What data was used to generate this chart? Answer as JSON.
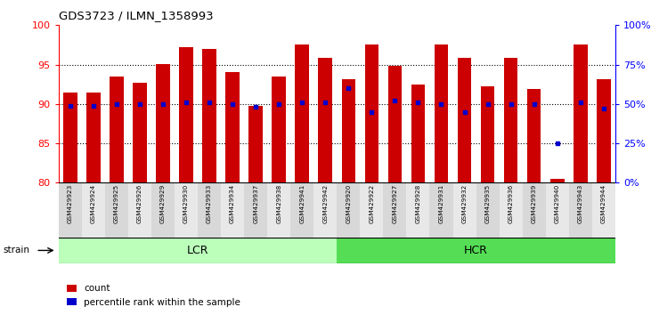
{
  "title": "GDS3723 / ILMN_1358993",
  "samples": [
    "GSM429923",
    "GSM429924",
    "GSM429925",
    "GSM429926",
    "GSM429929",
    "GSM429930",
    "GSM429933",
    "GSM429934",
    "GSM429937",
    "GSM429938",
    "GSM429941",
    "GSM429942",
    "GSM429920",
    "GSM429922",
    "GSM429927",
    "GSM429928",
    "GSM429931",
    "GSM429932",
    "GSM429935",
    "GSM429936",
    "GSM429939",
    "GSM429940",
    "GSM429943",
    "GSM429944"
  ],
  "count_values": [
    91.5,
    91.4,
    93.5,
    92.7,
    95.1,
    97.2,
    97.0,
    94.0,
    89.8,
    93.5,
    97.5,
    95.8,
    93.1,
    97.5,
    94.8,
    92.5,
    97.5,
    95.8,
    92.2,
    95.9,
    91.9,
    80.5,
    97.5,
    93.1
  ],
  "percentile_values_pct": [
    49,
    49,
    50,
    50,
    50,
    51,
    51,
    50,
    48,
    50,
    51,
    51,
    60,
    45,
    52,
    51,
    50,
    45,
    50,
    50,
    50,
    25,
    51,
    47
  ],
  "lcr_count": 12,
  "hcr_count": 12,
  "bar_color": "#cc0000",
  "dot_color": "#0000cc",
  "ylim_left": [
    80,
    100
  ],
  "ylim_right": [
    0,
    100
  ],
  "yticks_left": [
    80,
    85,
    90,
    95,
    100
  ],
  "yticks_right": [
    0,
    25,
    50,
    75,
    100
  ],
  "bar_width": 0.6,
  "lcr_color": "#bbffbb",
  "hcr_color": "#55dd55",
  "strain_label": "strain",
  "legend_count_label": "count",
  "legend_pct_label": "percentile rank within the sample"
}
